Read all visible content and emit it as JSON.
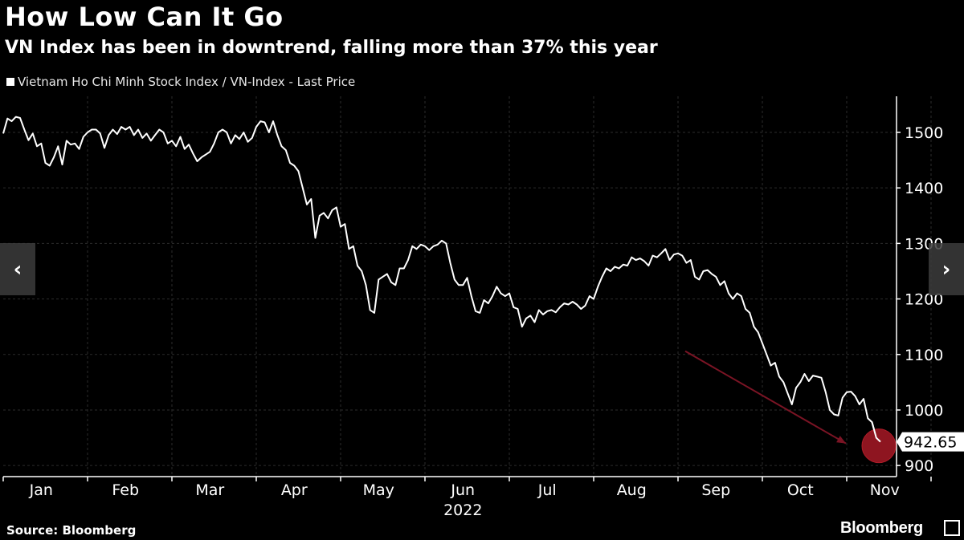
{
  "chart_data": {
    "type": "line",
    "title": "How Low Can It Go",
    "subtitle": "VN Index has been in downtrend, falling more than 37% this year",
    "legend": "Vietnam Ho Chi Minh Stock Index / VN-Index - Last Price",
    "x_tick_labels": [
      "Jan",
      "Feb",
      "Mar",
      "Apr",
      "May",
      "Jun",
      "Jul",
      "Aug",
      "Sep",
      "Oct",
      "Nov"
    ],
    "year_label": "2022",
    "y_ticks": [
      900,
      1000,
      1100,
      1200,
      1300,
      1400,
      1500
    ],
    "ylim": [
      880,
      1565
    ],
    "last_value_label": "942.65",
    "last_value": 942.65,
    "series": [
      {
        "name": "VN-Index",
        "x_months": [
          0.0,
          0.05,
          0.1,
          0.15,
          0.2,
          0.25,
          0.3,
          0.35,
          0.4,
          0.45,
          0.5,
          0.55,
          0.6,
          0.65,
          0.7,
          0.75,
          0.8,
          0.85,
          0.9,
          0.95,
          1.0,
          1.05,
          1.1,
          1.15,
          1.2,
          1.25,
          1.3,
          1.35,
          1.4,
          1.45,
          1.5,
          1.55,
          1.6,
          1.65,
          1.7,
          1.75,
          1.8,
          1.85,
          1.9,
          1.95,
          2.0,
          2.05,
          2.1,
          2.15,
          2.2,
          2.25,
          2.3,
          2.35,
          2.4,
          2.45,
          2.5,
          2.55,
          2.6,
          2.65,
          2.7,
          2.75,
          2.8,
          2.85,
          2.9,
          2.95,
          3.0,
          3.05,
          3.1,
          3.15,
          3.2,
          3.25,
          3.3,
          3.35,
          3.4,
          3.45,
          3.5,
          3.55,
          3.6,
          3.65,
          3.7,
          3.75,
          3.8,
          3.85,
          3.9,
          3.95,
          4.0,
          4.05,
          4.1,
          4.15,
          4.2,
          4.25,
          4.3,
          4.35,
          4.4,
          4.45,
          4.5,
          4.55,
          4.6,
          4.65,
          4.7,
          4.75,
          4.8,
          4.85,
          4.9,
          4.95,
          5.0,
          5.05,
          5.1,
          5.15,
          5.2,
          5.25,
          5.3,
          5.35,
          5.4,
          5.45,
          5.5,
          5.55,
          5.6,
          5.65,
          5.7,
          5.75,
          5.8,
          5.85,
          5.9,
          5.95,
          6.0,
          6.05,
          6.1,
          6.15,
          6.2,
          6.25,
          6.3,
          6.35,
          6.4,
          6.45,
          6.5,
          6.55,
          6.6,
          6.65,
          6.7,
          6.75,
          6.8,
          6.85,
          6.9,
          6.95,
          7.0,
          7.05,
          7.1,
          7.15,
          7.2,
          7.25,
          7.3,
          7.35,
          7.4,
          7.45,
          7.5,
          7.55,
          7.6,
          7.65,
          7.7,
          7.75,
          7.8,
          7.85,
          7.9,
          7.95,
          8.0,
          8.05,
          8.1,
          8.15,
          8.2,
          8.25,
          8.3,
          8.35,
          8.4,
          8.45,
          8.5,
          8.55,
          8.6,
          8.65,
          8.7,
          8.75,
          8.8,
          8.85,
          8.9,
          8.95,
          9.0,
          9.05,
          9.1,
          9.15,
          9.2,
          9.25,
          9.3,
          9.35,
          9.4,
          9.45,
          9.5,
          9.55,
          9.6,
          9.65,
          9.7,
          9.75,
          9.8,
          9.85,
          9.9,
          9.95,
          10.0,
          10.05,
          10.1,
          10.15,
          10.2,
          10.25,
          10.3,
          10.35,
          10.4
        ],
        "values": [
          1498,
          1525,
          1520,
          1528,
          1526,
          1505,
          1486,
          1498,
          1475,
          1480,
          1445,
          1440,
          1455,
          1475,
          1442,
          1485,
          1478,
          1480,
          1470,
          1492,
          1500,
          1505,
          1505,
          1498,
          1472,
          1495,
          1505,
          1497,
          1510,
          1505,
          1510,
          1495,
          1505,
          1490,
          1498,
          1485,
          1495,
          1505,
          1500,
          1480,
          1485,
          1475,
          1492,
          1470,
          1478,
          1462,
          1448,
          1455,
          1460,
          1465,
          1480,
          1500,
          1505,
          1500,
          1480,
          1495,
          1488,
          1500,
          1483,
          1490,
          1510,
          1520,
          1518,
          1500,
          1520,
          1495,
          1475,
          1468,
          1445,
          1440,
          1430,
          1400,
          1370,
          1380,
          1310,
          1350,
          1355,
          1345,
          1360,
          1365,
          1330,
          1335,
          1290,
          1295,
          1260,
          1250,
          1225,
          1180,
          1175,
          1235,
          1240,
          1245,
          1230,
          1225,
          1255,
          1255,
          1270,
          1295,
          1290,
          1298,
          1295,
          1288,
          1295,
          1298,
          1305,
          1300,
          1265,
          1235,
          1225,
          1225,
          1238,
          1205,
          1178,
          1175,
          1198,
          1192,
          1205,
          1222,
          1210,
          1205,
          1210,
          1185,
          1182,
          1150,
          1165,
          1170,
          1158,
          1180,
          1172,
          1178,
          1180,
          1176,
          1185,
          1192,
          1190,
          1195,
          1190,
          1182,
          1188,
          1205,
          1200,
          1222,
          1240,
          1255,
          1250,
          1258,
          1255,
          1262,
          1260,
          1275,
          1270,
          1273,
          1268,
          1260,
          1278,
          1275,
          1282,
          1290,
          1270,
          1280,
          1282,
          1278,
          1265,
          1270,
          1240,
          1235,
          1250,
          1252,
          1245,
          1240,
          1225,
          1232,
          1210,
          1200,
          1210,
          1205,
          1182,
          1175,
          1150,
          1140,
          1120,
          1100,
          1080,
          1085,
          1060,
          1050,
          1030,
          1010,
          1040,
          1050,
          1065,
          1052,
          1062,
          1060,
          1058,
          1032,
          1000,
          992,
          990,
          1022,
          1032,
          1033,
          1025,
          1010,
          1020,
          985,
          978,
          950,
          942.65
        ]
      }
    ],
    "annotation": "Red arrow pointing down toward the last value, highlighted with a red circle"
  },
  "source": "Source: Bloomberg",
  "brand": "Bloomberg",
  "nav": {
    "prev": "‹",
    "next": "›"
  },
  "colors": {
    "background": "#000000",
    "line": "#ffffff",
    "arrow": "#7a1424",
    "marker": "#8e1520",
    "label_bg": "#ffffff"
  }
}
